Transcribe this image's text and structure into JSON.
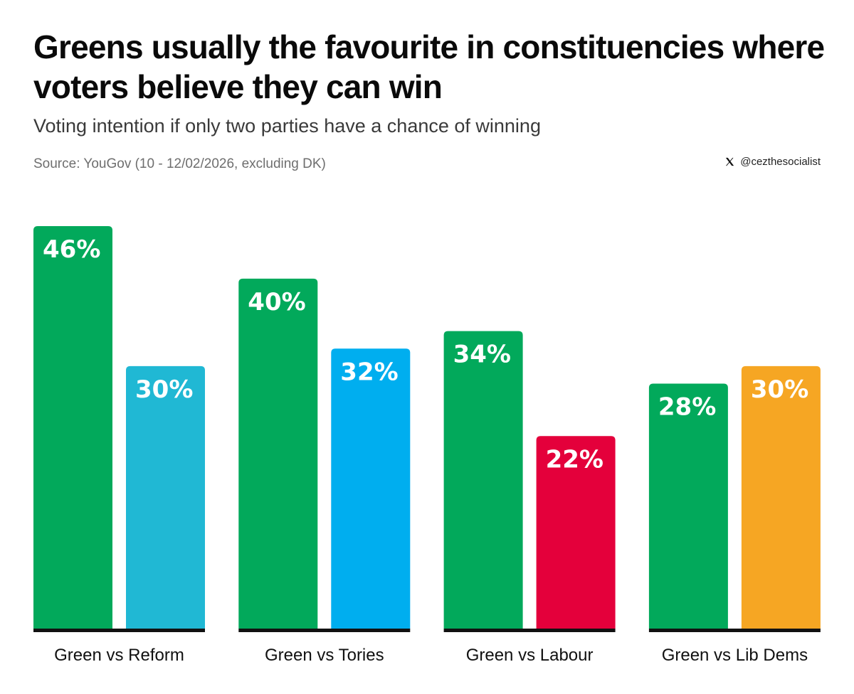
{
  "header": {
    "title": "Greens usually the favourite in constituencies where voters believe they can win",
    "subtitle": "Voting intention if only two parties have a chance of winning",
    "source": "Source: YouGov (10 - 12/02/2026, excluding DK)",
    "credit": "@cezthesocialist",
    "credit_icon": "x-logo-icon"
  },
  "chart_data": {
    "type": "bar",
    "title": "Greens usually the favourite in constituencies where voters believe they can win",
    "subtitle": "Voting intention if only two parties have a chance of winning",
    "xlabel": "",
    "ylabel": "",
    "ylim": [
      0,
      46
    ],
    "grid": false,
    "legend": "none",
    "groups": [
      {
        "category": "Green vs Reform",
        "bars": [
          {
            "party": "Green",
            "value": 46,
            "label": "46%",
            "color": "#02A95B"
          },
          {
            "party": "Reform",
            "value": 30,
            "label": "30%",
            "color": "#20B8D4"
          }
        ]
      },
      {
        "category": "Green vs Tories",
        "bars": [
          {
            "party": "Green",
            "value": 40,
            "label": "40%",
            "color": "#02A95B"
          },
          {
            "party": "Tories",
            "value": 32,
            "label": "32%",
            "color": "#00AEEF"
          }
        ]
      },
      {
        "category": "Green vs Labour",
        "bars": [
          {
            "party": "Green",
            "value": 34,
            "label": "34%",
            "color": "#02A95B"
          },
          {
            "party": "Labour",
            "value": 22,
            "label": "22%",
            "color": "#E4003B"
          }
        ]
      },
      {
        "category": "Green vs Lib Dems",
        "bars": [
          {
            "party": "Green",
            "value": 28,
            "label": "28%",
            "color": "#02A95B"
          },
          {
            "party": "Lib Dems",
            "value": 30,
            "label": "30%",
            "color": "#F6A623"
          }
        ]
      }
    ],
    "baseline_color": "#111111"
  }
}
